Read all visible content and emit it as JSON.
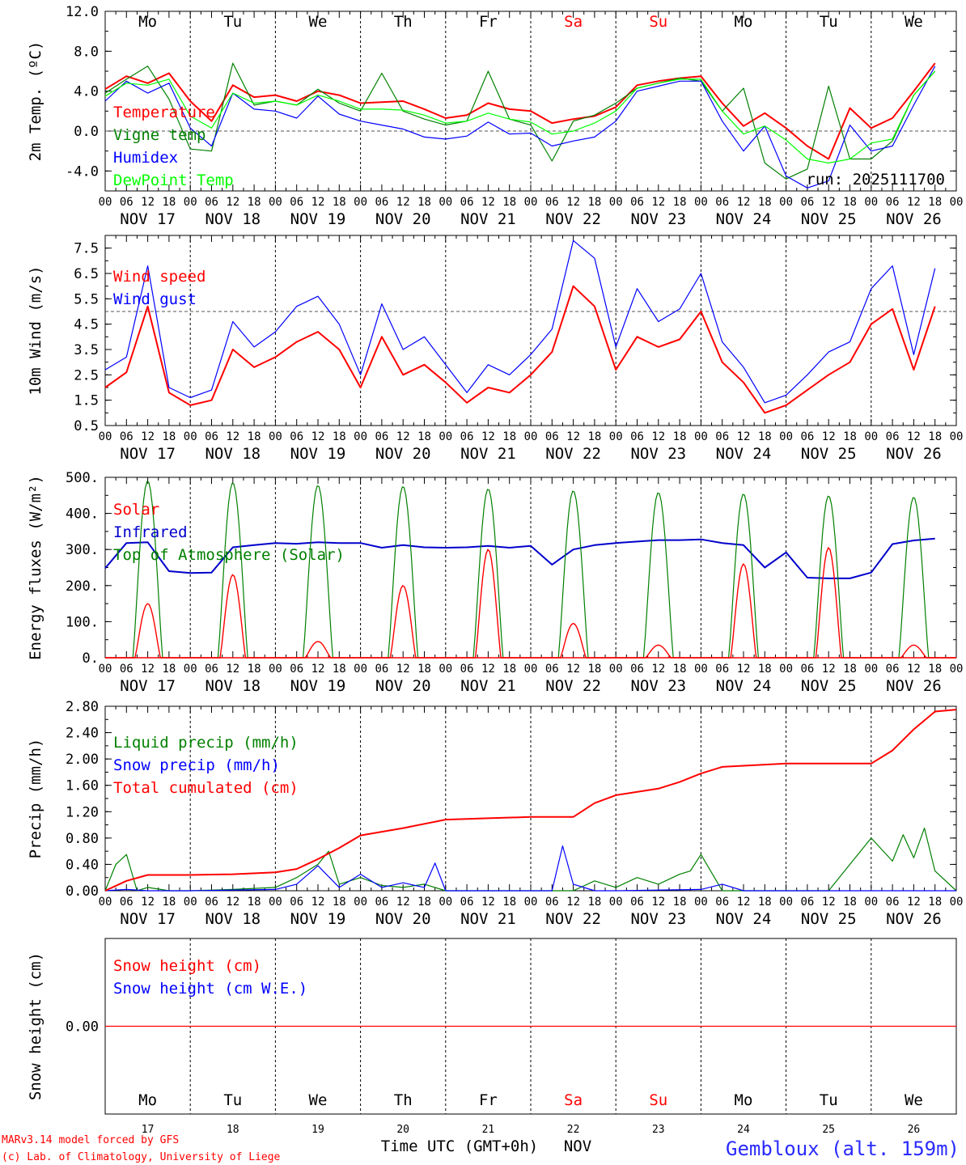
{
  "chart_data": [
    {
      "type": "line",
      "ylabel": "2m Temp. (ºC)",
      "ylim": [
        -6,
        12
      ],
      "yticks": [
        "12.0",
        "8.0",
        "4.0",
        "0.0",
        "-4.0"
      ],
      "yticks_values": [
        12,
        8,
        4,
        0,
        -4
      ],
      "reference_line": 0,
      "x_unit": "hours since 2025-11-17 00 UTC",
      "days": [
        "Mo",
        "Tu",
        "We",
        "Th",
        "Fr",
        "Sa",
        "Su",
        "Mo",
        "Tu",
        "We"
      ],
      "day_colors": [
        "#000000",
        "#000000",
        "#000000",
        "#000000",
        "#000000",
        "#ff0000",
        "#ff0000",
        "#000000",
        "#000000",
        "#000000"
      ],
      "run_label": "run: 2025111700",
      "series": [
        {
          "name": "Temperature",
          "color": "#ff0000",
          "x": [
            0,
            6,
            12,
            18,
            24,
            30,
            36,
            42,
            48,
            54,
            60,
            66,
            72,
            78,
            84,
            90,
            96,
            102,
            108,
            114,
            120,
            126,
            132,
            138,
            144,
            150,
            156,
            162,
            168,
            174,
            180,
            186,
            192,
            198,
            204,
            210,
            216,
            222,
            228,
            234
          ],
          "values": [
            4.2,
            5.5,
            4.8,
            5.8,
            3.0,
            1.0,
            4.6,
            3.4,
            3.6,
            3.0,
            4.0,
            3.6,
            2.8,
            2.9,
            3.0,
            2.2,
            1.3,
            1.6,
            2.8,
            2.2,
            2.0,
            0.8,
            1.2,
            1.5,
            2.4,
            4.6,
            5.0,
            5.3,
            5.5,
            2.8,
            0.5,
            1.8,
            0.3,
            -1.5,
            -2.8,
            2.3,
            0.3,
            1.3,
            4.0,
            6.8
          ]
        },
        {
          "name": "Vigne temp",
          "color": "#008000",
          "x": [
            0,
            6,
            12,
            18,
            24,
            30,
            36,
            42,
            48,
            54,
            60,
            66,
            72,
            78,
            84,
            90,
            96,
            102,
            108,
            114,
            120,
            126,
            132,
            138,
            144,
            150,
            156,
            162,
            168,
            174,
            180,
            186,
            192,
            198,
            204,
            210,
            216,
            222,
            228,
            234
          ],
          "values": [
            3.8,
            5.2,
            6.5,
            3.2,
            -1.8,
            -2.0,
            6.8,
            2.6,
            3.0,
            2.6,
            4.2,
            2.8,
            2.0,
            5.8,
            2.0,
            1.2,
            0.6,
            1.0,
            6.0,
            1.2,
            0.6,
            -3.0,
            1.0,
            1.6,
            2.8,
            4.3,
            4.8,
            5.3,
            5.0,
            2.0,
            4.3,
            -3.2,
            -4.8,
            -3.8,
            4.5,
            -2.8,
            -2.8,
            -1.0,
            3.6,
            6.0
          ]
        },
        {
          "name": "Humidex",
          "color": "#0000ff",
          "x": [
            0,
            6,
            12,
            18,
            24,
            30,
            36,
            42,
            48,
            54,
            60,
            66,
            72,
            78,
            84,
            90,
            96,
            102,
            108,
            114,
            120,
            126,
            132,
            138,
            144,
            150,
            156,
            162,
            168,
            174,
            180,
            186,
            192,
            198,
            204,
            210,
            216,
            222,
            228,
            234
          ],
          "values": [
            3.0,
            5.0,
            3.8,
            4.8,
            0.3,
            -1.5,
            3.8,
            2.2,
            2.0,
            1.3,
            3.5,
            1.7,
            1.0,
            0.6,
            0.2,
            -0.6,
            -0.8,
            -0.5,
            0.9,
            -0.3,
            -0.2,
            -1.5,
            -1.0,
            -0.6,
            1.0,
            4.0,
            4.5,
            5.0,
            5.0,
            1.0,
            -2.0,
            0.5,
            -4.5,
            -5.7,
            -5.0,
            0.6,
            -2.0,
            -1.5,
            2.6,
            6.5
          ]
        },
        {
          "name": "DewPoint Temp",
          "color": "#00ff00",
          "x": [
            0,
            6,
            12,
            18,
            24,
            30,
            36,
            42,
            48,
            54,
            60,
            66,
            72,
            78,
            84,
            90,
            96,
            102,
            108,
            114,
            120,
            126,
            132,
            138,
            144,
            150,
            156,
            162,
            168,
            174,
            180,
            186,
            192,
            198,
            204,
            210,
            216,
            222,
            228,
            234
          ],
          "values": [
            3.5,
            4.8,
            4.6,
            5.2,
            1.5,
            0.3,
            3.8,
            2.8,
            3.0,
            2.6,
            3.6,
            3.0,
            2.2,
            2.2,
            2.1,
            1.6,
            0.8,
            1.0,
            1.8,
            1.2,
            0.9,
            -0.3,
            0.0,
            0.8,
            2.0,
            4.3,
            4.8,
            5.2,
            5.2,
            2.0,
            -0.3,
            0.5,
            -0.9,
            -2.8,
            -3.2,
            -2.8,
            -1.2,
            -0.8,
            3.6,
            6.0
          ]
        }
      ]
    },
    {
      "type": "line",
      "ylabel": "10m Wind (m/s)",
      "ylim": [
        0.5,
        8.0
      ],
      "yticks": [
        "7.5",
        "6.5",
        "5.5",
        "4.5",
        "3.5",
        "2.5",
        "1.5",
        "0.5"
      ],
      "yticks_values": [
        7.5,
        6.5,
        5.5,
        4.5,
        3.5,
        2.5,
        1.5,
        0.5
      ],
      "reference_line": 5,
      "x_unit": "hours since 2025-11-17 00 UTC",
      "series": [
        {
          "name": "Wind speed",
          "color": "#ff0000",
          "x": [
            0,
            6,
            12,
            18,
            24,
            30,
            36,
            42,
            48,
            54,
            60,
            66,
            72,
            78,
            84,
            90,
            96,
            102,
            108,
            114,
            120,
            126,
            132,
            138,
            144,
            150,
            156,
            162,
            168,
            174,
            180,
            186,
            192,
            198,
            204,
            210,
            216,
            222,
            228,
            234
          ],
          "values": [
            2.0,
            2.6,
            5.2,
            1.8,
            1.3,
            1.5,
            3.5,
            2.8,
            3.2,
            3.8,
            4.2,
            3.5,
            2.0,
            4.0,
            2.5,
            2.9,
            2.2,
            1.4,
            2.0,
            1.8,
            2.5,
            3.4,
            6.0,
            5.2,
            2.7,
            4.0,
            3.6,
            3.9,
            5.0,
            3.0,
            2.2,
            1.0,
            1.3,
            1.9,
            2.5,
            3.0,
            4.5,
            5.1,
            2.7,
            5.2
          ]
        },
        {
          "name": "Wind gust",
          "color": "#0000ff",
          "x": [
            0,
            6,
            12,
            18,
            24,
            30,
            36,
            42,
            48,
            54,
            60,
            66,
            72,
            78,
            84,
            90,
            96,
            102,
            108,
            114,
            120,
            126,
            132,
            138,
            144,
            150,
            156,
            162,
            168,
            174,
            180,
            186,
            192,
            198,
            204,
            210,
            216,
            222,
            228,
            234
          ],
          "values": [
            2.7,
            3.2,
            6.8,
            2.0,
            1.6,
            1.9,
            4.6,
            3.6,
            4.2,
            5.2,
            5.6,
            4.5,
            2.5,
            5.3,
            3.5,
            4.0,
            2.9,
            1.8,
            2.9,
            2.5,
            3.3,
            4.3,
            7.8,
            7.1,
            3.6,
            5.9,
            4.6,
            5.1,
            6.5,
            3.8,
            2.8,
            1.4,
            1.7,
            2.5,
            3.4,
            3.8,
            5.9,
            6.8,
            3.3,
            6.7
          ]
        }
      ]
    },
    {
      "type": "line",
      "ylabel": "Energy fluxes (W/m²)",
      "ylim": [
        0,
        500
      ],
      "yticks": [
        "500.",
        "400.",
        "300.",
        "200.",
        "100.",
        "0."
      ],
      "yticks_values": [
        500,
        400,
        300,
        200,
        100,
        0
      ],
      "x_unit": "hours since 2025-11-17 00 UTC",
      "day_peaks": {
        "noon_offset_hours": 12,
        "toa_peaks": [
          490,
          485,
          478,
          475,
          468,
          463,
          458,
          454,
          449,
          445
        ],
        "solar_peaks": [
          150,
          230,
          45,
          200,
          300,
          95,
          35,
          260,
          305,
          35
        ]
      },
      "series": [
        {
          "name": "Solar",
          "color": "#ff0000"
        },
        {
          "name": "Infrared",
          "color": "#0000cc",
          "x": [
            0,
            6,
            12,
            18,
            24,
            30,
            36,
            42,
            48,
            54,
            60,
            66,
            72,
            78,
            84,
            90,
            96,
            102,
            108,
            114,
            120,
            126,
            132,
            138,
            144,
            150,
            156,
            162,
            168,
            174,
            180,
            186,
            192,
            198,
            204,
            210,
            216,
            222,
            228,
            234
          ],
          "values": [
            248,
            318,
            320,
            240,
            235,
            236,
            306,
            312,
            318,
            316,
            320,
            318,
            318,
            305,
            312,
            306,
            305,
            306,
            310,
            305,
            310,
            258,
            300,
            312,
            318,
            322,
            326,
            326,
            328,
            318,
            312,
            250,
            292,
            222,
            220,
            220,
            236,
            315,
            325,
            330
          ]
        },
        {
          "name": "Top of Atmosphere (Solar)",
          "color": "#008000"
        }
      ]
    },
    {
      "type": "line",
      "ylabel": "Precip (mm/h)",
      "ylim": [
        0,
        2.8
      ],
      "yticks": [
        "2.80",
        "2.40",
        "2.00",
        "1.60",
        "1.20",
        "0.80",
        "0.40",
        "0.00"
      ],
      "yticks_values": [
        2.8,
        2.4,
        2.0,
        1.6,
        1.2,
        0.8,
        0.4,
        0.0
      ],
      "x_unit": "hours since 2025-11-17 00 UTC",
      "series": [
        {
          "name": "Liquid precip (mm/h)",
          "color": "#008000",
          "x": [
            0,
            3,
            6,
            9,
            12,
            18,
            24,
            36,
            48,
            54,
            60,
            63,
            66,
            72,
            78,
            84,
            90,
            96,
            120,
            126,
            132,
            138,
            144,
            150,
            156,
            162,
            165,
            168,
            174,
            204,
            216,
            222,
            225,
            228,
            231,
            234,
            240
          ],
          "values": [
            0,
            0.4,
            0.55,
            0,
            0.05,
            0,
            0,
            0.02,
            0.05,
            0.2,
            0.4,
            0.6,
            0.1,
            0.2,
            0.08,
            0.05,
            0.1,
            0,
            0,
            0,
            0,
            0.15,
            0.05,
            0.2,
            0.1,
            0.25,
            0.3,
            0.55,
            0,
            0,
            0.8,
            0.45,
            0.85,
            0.5,
            0.95,
            0.3,
            0
          ]
        },
        {
          "name": "Snow precip (mm/h)",
          "color": "#0000ff",
          "x": [
            0,
            6,
            12,
            24,
            48,
            54,
            60,
            66,
            72,
            78,
            84,
            90,
            93,
            96,
            120,
            126,
            129,
            132,
            138,
            144,
            168,
            174,
            180,
            240
          ],
          "values": [
            0,
            0.02,
            0,
            0,
            0.02,
            0.1,
            0.38,
            0.05,
            0.25,
            0.05,
            0.12,
            0.05,
            0.42,
            0,
            0,
            0,
            0.68,
            0.1,
            0,
            0,
            0.02,
            0.1,
            0,
            0
          ]
        },
        {
          "name": "Total cumulated (cm)",
          "color": "#ff0000",
          "x": [
            0,
            6,
            12,
            24,
            36,
            48,
            54,
            60,
            66,
            72,
            84,
            96,
            108,
            120,
            132,
            138,
            144,
            156,
            162,
            168,
            174,
            192,
            204,
            210,
            216,
            222,
            228,
            234,
            240
          ],
          "values": [
            0,
            0.15,
            0.24,
            0.24,
            0.25,
            0.28,
            0.33,
            0.48,
            0.65,
            0.84,
            0.95,
            1.08,
            1.1,
            1.12,
            1.12,
            1.33,
            1.45,
            1.55,
            1.65,
            1.78,
            1.88,
            1.93,
            1.93,
            1.93,
            1.93,
            2.13,
            2.45,
            2.72,
            2.75
          ]
        }
      ]
    },
    {
      "type": "line",
      "ylabel": "Snow height (cm)",
      "yticks": [
        "0.00"
      ],
      "yticks_values": [
        0
      ],
      "ylim": [
        -1,
        1
      ],
      "x_unit": "hours since 2025-11-17 00 UTC",
      "series": [
        {
          "name": "Snow height (cm)",
          "color": "#ff0000",
          "x": [
            0,
            240
          ],
          "values": [
            0,
            0
          ]
        },
        {
          "name": "Snow height (cm W.E.)",
          "color": "#0000ff"
        }
      ],
      "days": [
        "Mo",
        "Tu",
        "We",
        "Th",
        "Fr",
        "Sa",
        "Su",
        "Mo",
        "Tu",
        "We"
      ],
      "day_numbers": [
        "17",
        "18",
        "19",
        "20",
        "21",
        "22",
        "23",
        "24",
        "25",
        "26"
      ],
      "xlabel": "Time UTC (GMT+0h)",
      "month": "NOV"
    }
  ],
  "x_axis": {
    "hour_ticks": [
      "00",
      "06",
      "12",
      "18"
    ],
    "final_tick": "00",
    "date_labels": [
      "NOV 17",
      "NOV 18",
      "NOV 19",
      "NOV 20",
      "NOV 21",
      "NOV 22",
      "NOV 23",
      "NOV 24",
      "NOV 25",
      "NOV 26"
    ],
    "range_hours": [
      0,
      240
    ]
  },
  "footer": {
    "model_credit": "MARv3.14 model forced by GFS",
    "lab_credit": "(c) Lab. of Climatology, University of Liege",
    "station": "Gembloux (alt. 159m)"
  }
}
